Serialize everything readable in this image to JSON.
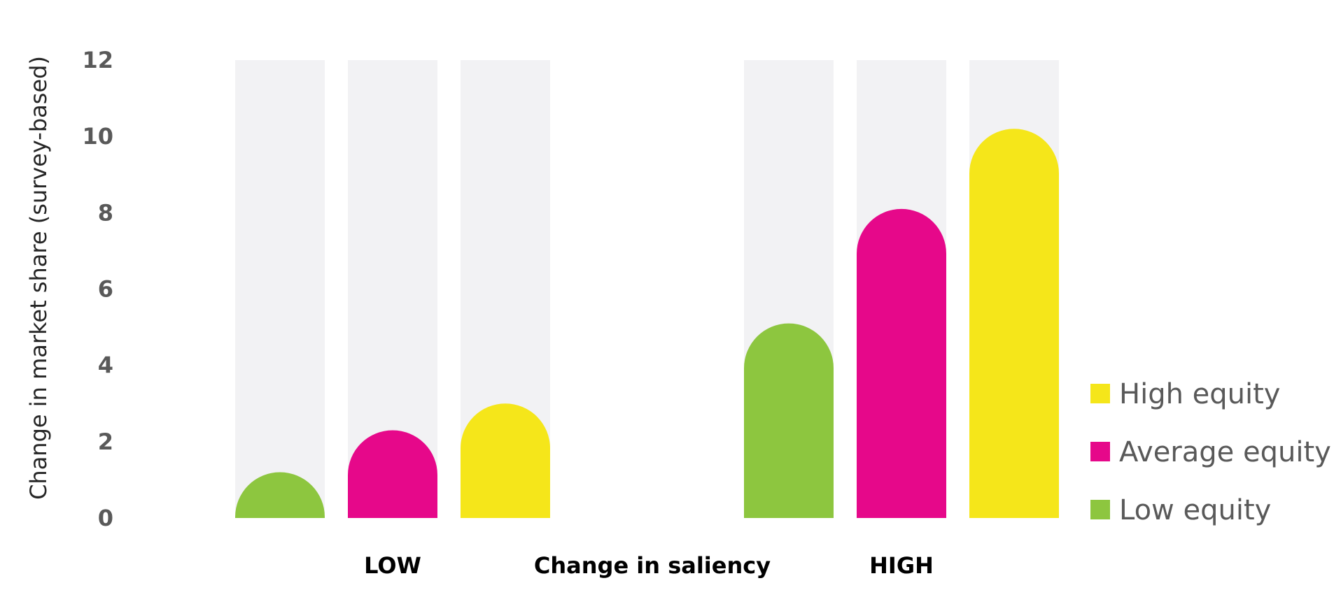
{
  "chart_data": {
    "type": "bar",
    "title": "",
    "ylabel": "Change in market share (survey-based)",
    "xlabel": "Change in saliency",
    "categories": [
      "LOW",
      "HIGH"
    ],
    "ylim": [
      0,
      12
    ],
    "yticks": [
      0,
      2,
      4,
      6,
      8,
      10,
      12
    ],
    "background_track_value": 12,
    "grid": false,
    "legend_position": "right",
    "series": [
      {
        "name": "Low equity",
        "color": "#8DC63F",
        "values": [
          1.2,
          5.1
        ]
      },
      {
        "name": "Average equity",
        "color": "#E6088A",
        "values": [
          2.3,
          8.1
        ]
      },
      {
        "name": "High equity",
        "color": "#F5E61A",
        "values": [
          3.0,
          10.2
        ]
      }
    ],
    "legend_order": [
      "High equity",
      "Average equity",
      "Low equity"
    ],
    "track_color": "#F2F2F4"
  }
}
